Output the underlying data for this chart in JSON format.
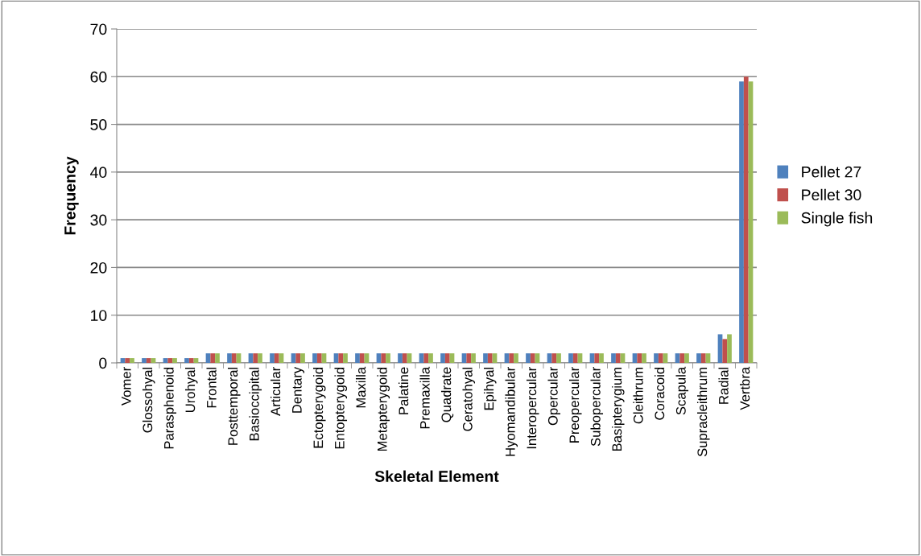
{
  "chart_data": {
    "type": "bar",
    "xlabel": "Skeletal Element",
    "ylabel": "Frequency",
    "categories": [
      "Vomer",
      "Glossohyal",
      "Parasphenoid",
      "Urohyal",
      "Frontal",
      "Posttemporal",
      "Basioccipital",
      "Articular",
      "Dentary",
      "Ectopterygoid",
      "Entopterygoid",
      "Maxilla",
      "Metapterygoid",
      "Palatine",
      "Premaxilla",
      "Quadrate",
      "Ceratohyal",
      "Epihyal",
      "Hyomandibular",
      "Interopercular",
      "Opercular",
      "Preopercular",
      "Subopercular",
      "Basipterygium",
      "Cleithrum",
      "Coracoid",
      "Scapula",
      "Supracleithrum",
      "Radial",
      "Vertbra"
    ],
    "series": [
      {
        "name": "Pellet 27",
        "color": "#4f81bd",
        "values": [
          1,
          1,
          1,
          1,
          2,
          2,
          2,
          2,
          2,
          2,
          2,
          2,
          2,
          2,
          2,
          2,
          2,
          2,
          2,
          2,
          2,
          2,
          2,
          2,
          2,
          2,
          2,
          2,
          6,
          59
        ]
      },
      {
        "name": "Pellet 30",
        "color": "#c0504d",
        "values": [
          1,
          1,
          1,
          1,
          2,
          2,
          2,
          2,
          2,
          2,
          2,
          2,
          2,
          2,
          2,
          2,
          2,
          2,
          2,
          2,
          2,
          2,
          2,
          2,
          2,
          2,
          2,
          2,
          5,
          60
        ]
      },
      {
        "name": "Single fish",
        "color": "#9bbb59",
        "values": [
          1,
          1,
          1,
          1,
          2,
          2,
          2,
          2,
          2,
          2,
          2,
          2,
          2,
          2,
          2,
          2,
          2,
          2,
          2,
          2,
          2,
          2,
          2,
          2,
          2,
          2,
          2,
          2,
          6,
          59
        ]
      }
    ],
    "ylim": [
      0,
      70
    ],
    "yticks": [
      0,
      10,
      20,
      30,
      40,
      50,
      60,
      70
    ],
    "grid": "y",
    "legend": "right"
  }
}
